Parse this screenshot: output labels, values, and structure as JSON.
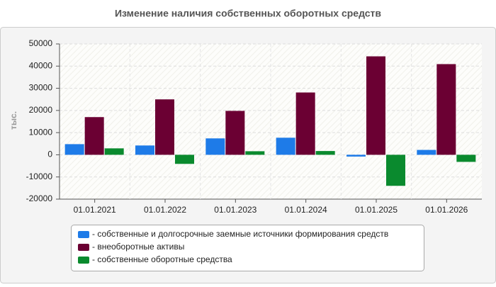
{
  "chart_data": {
    "type": "bar",
    "title": "Изменение наличия собственных оборотных средств",
    "y_label": "тыс.",
    "categories": [
      "01.01.2021",
      "01.01.2022",
      "01.01.2023",
      "01.01.2024",
      "01.01.2025",
      "01.01.2026"
    ],
    "series": [
      {
        "name": "- собственные и долгосрочные заемные источники формирования средств",
        "color": "#1e7be8",
        "values": [
          4800,
          4200,
          7400,
          7700,
          -800,
          2200
        ]
      },
      {
        "name": "- внеоборотные активы",
        "color": "#6b0033",
        "values": [
          17000,
          25000,
          19800,
          28100,
          44400,
          40900
        ]
      },
      {
        "name": "- собственные оборотные средства",
        "color": "#0a8a2e",
        "values": [
          2900,
          -4100,
          1600,
          1700,
          -14000,
          -3200
        ]
      }
    ],
    "ylim": [
      -20000,
      50000
    ],
    "yticks": [
      -20000,
      -10000,
      0,
      10000,
      20000,
      30000,
      40000,
      50000
    ],
    "grid": true
  }
}
